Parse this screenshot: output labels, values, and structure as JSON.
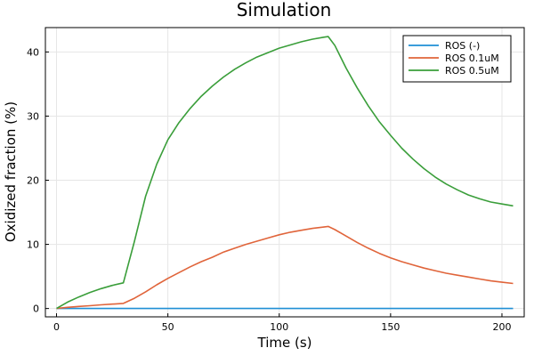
{
  "chart_data": {
    "type": "line",
    "title": "Simulation",
    "xlabel": "Time (s)",
    "ylabel": "Oxidized fraction (%)",
    "xlim": [
      -5,
      210
    ],
    "ylim": [
      -1.3,
      43.8
    ],
    "xticks": [
      0,
      50,
      100,
      150,
      200
    ],
    "yticks": [
      0,
      10,
      20,
      30,
      40
    ],
    "grid": true,
    "legend_position": "top-right",
    "series": [
      {
        "name": "ROS (-)",
        "color": "#1f8fd5",
        "x": [
          0,
          205
        ],
        "y": [
          0,
          0
        ]
      },
      {
        "name": "ROS 0.1uM",
        "color": "#e0643a",
        "x": [
          0,
          5,
          10,
          15,
          20,
          25,
          30,
          35,
          40,
          45,
          50,
          55,
          60,
          65,
          70,
          75,
          80,
          85,
          90,
          95,
          100,
          105,
          110,
          115,
          120,
          122,
          125,
          130,
          135,
          140,
          145,
          150,
          155,
          160,
          165,
          170,
          175,
          180,
          185,
          190,
          195,
          200,
          205
        ],
        "y": [
          0,
          0.18,
          0.32,
          0.44,
          0.57,
          0.68,
          0.8,
          1.6,
          2.6,
          3.7,
          4.7,
          5.6,
          6.5,
          7.3,
          8.0,
          8.8,
          9.4,
          10.0,
          10.5,
          11.0,
          11.5,
          11.9,
          12.2,
          12.5,
          12.7,
          12.8,
          12.3,
          11.3,
          10.3,
          9.4,
          8.6,
          7.9,
          7.3,
          6.8,
          6.3,
          5.9,
          5.5,
          5.2,
          4.9,
          4.6,
          4.3,
          4.1,
          3.9
        ]
      },
      {
        "name": "ROS 0.5uM",
        "color": "#3a9e3a",
        "x": [
          0,
          5,
          10,
          15,
          20,
          25,
          30,
          35,
          40,
          45,
          50,
          55,
          60,
          65,
          70,
          75,
          80,
          85,
          90,
          95,
          100,
          105,
          110,
          115,
          120,
          122,
          125,
          130,
          135,
          140,
          145,
          150,
          155,
          160,
          165,
          170,
          175,
          180,
          185,
          190,
          195,
          200,
          205
        ],
        "y": [
          0,
          1.0,
          1.8,
          2.5,
          3.1,
          3.6,
          4.0,
          10.5,
          17.5,
          22.5,
          26.3,
          29.0,
          31.2,
          33.1,
          34.7,
          36.1,
          37.3,
          38.3,
          39.2,
          39.9,
          40.6,
          41.1,
          41.6,
          42.0,
          42.3,
          42.4,
          41.0,
          37.5,
          34.4,
          31.6,
          29.1,
          27.0,
          25.0,
          23.3,
          21.8,
          20.5,
          19.4,
          18.5,
          17.7,
          17.1,
          16.6,
          16.3,
          16.0
        ]
      }
    ]
  }
}
